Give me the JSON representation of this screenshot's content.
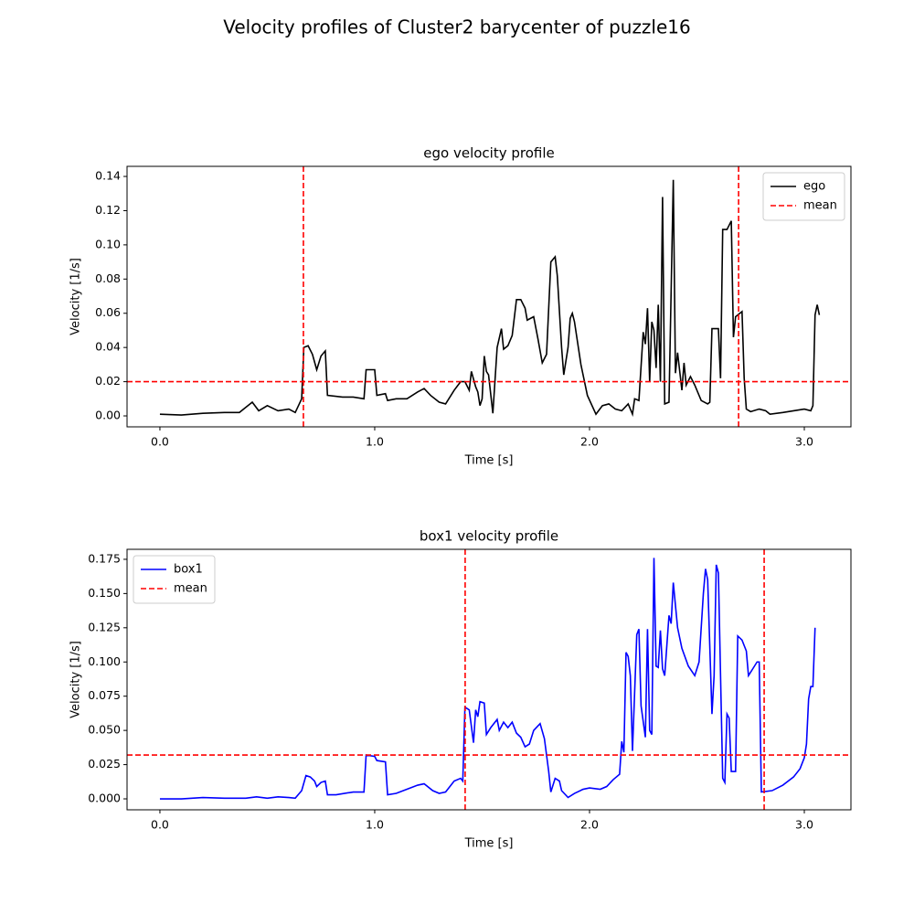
{
  "title": "Velocity profiles of  Cluster2 barycenter of puzzle16",
  "chart_data": [
    {
      "type": "line",
      "title": "ego velocity profile",
      "x_label": "Time [s]",
      "y_label": "Velocity [1/s]",
      "xlim": [
        -0.153,
        3.217
      ],
      "ylim": [
        -0.0064,
        0.1459
      ],
      "xticks": [
        {
          "value": 0,
          "label": "0.0"
        },
        {
          "value": 1,
          "label": "1.0"
        },
        {
          "value": 2,
          "label": "2.0"
        },
        {
          "value": 3,
          "label": "3.0"
        }
      ],
      "yticks": [
        {
          "value": 0,
          "label": "0.00"
        },
        {
          "value": 0.02,
          "label": "0.02"
        },
        {
          "value": 0.04,
          "label": "0.04"
        },
        {
          "value": 0.06,
          "label": "0.06"
        },
        {
          "value": 0.08,
          "label": "0.08"
        },
        {
          "value": 0.1,
          "label": "0.10"
        },
        {
          "value": 0.12,
          "label": "0.12"
        },
        {
          "value": 0.14,
          "label": "0.14"
        }
      ],
      "legend": "upper right",
      "series": [
        {
          "name": "ego",
          "color": "#000000",
          "x": [
            0.0,
            0.1,
            0.2,
            0.3,
            0.37,
            0.4,
            0.43,
            0.46,
            0.5,
            0.55,
            0.6,
            0.63,
            0.66,
            0.67,
            0.69,
            0.71,
            0.73,
            0.75,
            0.77,
            0.78,
            0.85,
            0.9,
            0.95,
            0.96,
            1.0,
            1.01,
            1.05,
            1.06,
            1.1,
            1.15,
            1.2,
            1.23,
            1.26,
            1.3,
            1.33,
            1.37,
            1.4,
            1.42,
            1.44,
            1.45,
            1.47,
            1.48,
            1.49,
            1.5,
            1.51,
            1.52,
            1.53,
            1.55,
            1.57,
            1.59,
            1.6,
            1.62,
            1.64,
            1.66,
            1.68,
            1.7,
            1.71,
            1.74,
            1.76,
            1.78,
            1.8,
            1.82,
            1.84,
            1.85,
            1.87,
            1.88,
            1.9,
            1.91,
            1.92,
            1.93,
            1.96,
            1.99,
            2.03,
            2.06,
            2.09,
            2.12,
            2.15,
            2.18,
            2.2,
            2.21,
            2.23,
            2.25,
            2.26,
            2.27,
            2.28,
            2.29,
            2.3,
            2.31,
            2.32,
            2.33,
            2.34,
            2.35,
            2.37,
            2.39,
            2.4,
            2.41,
            2.43,
            2.44,
            2.45,
            2.47,
            2.49,
            2.52,
            2.55,
            2.56,
            2.57,
            2.6,
            2.61,
            2.62,
            2.64,
            2.66,
            2.67,
            2.68,
            2.7,
            2.71,
            2.72,
            2.73,
            2.75,
            2.79,
            2.82,
            2.84,
            2.9,
            2.95,
            3.0,
            3.03,
            3.04,
            3.05,
            3.06,
            3.07
          ],
          "values": [
            0.001,
            0.0005,
            0.0015,
            0.002,
            0.002,
            0.005,
            0.008,
            0.003,
            0.006,
            0.003,
            0.004,
            0.002,
            0.01,
            0.04,
            0.041,
            0.036,
            0.027,
            0.035,
            0.038,
            0.012,
            0.011,
            0.011,
            0.01,
            0.027,
            0.027,
            0.012,
            0.013,
            0.009,
            0.01,
            0.01,
            0.014,
            0.016,
            0.012,
            0.008,
            0.007,
            0.015,
            0.02,
            0.02,
            0.015,
            0.026,
            0.017,
            0.014,
            0.006,
            0.01,
            0.035,
            0.026,
            0.024,
            0.0015,
            0.04,
            0.051,
            0.039,
            0.041,
            0.047,
            0.068,
            0.068,
            0.063,
            0.056,
            0.058,
            0.045,
            0.031,
            0.036,
            0.09,
            0.093,
            0.082,
            0.04,
            0.024,
            0.04,
            0.057,
            0.06,
            0.055,
            0.03,
            0.012,
            0.001,
            0.006,
            0.007,
            0.004,
            0.003,
            0.007,
            0.001,
            0.01,
            0.009,
            0.049,
            0.042,
            0.063,
            0.02,
            0.055,
            0.05,
            0.028,
            0.065,
            0.02,
            0.128,
            0.007,
            0.008,
            0.138,
            0.025,
            0.037,
            0.015,
            0.031,
            0.018,
            0.023,
            0.018,
            0.009,
            0.007,
            0.008,
            0.051,
            0.051,
            0.022,
            0.109,
            0.109,
            0.114,
            0.046,
            0.058,
            0.06,
            0.061,
            0.022,
            0.004,
            0.0025,
            0.004,
            0.003,
            0.001,
            0.002,
            0.003,
            0.004,
            0.003,
            0.006,
            0.059,
            0.065,
            0.059
          ]
        }
      ],
      "mean_lines": {
        "name": "mean",
        "color": "#ff0000",
        "y": 0.02,
        "x": [
          0.668,
          2.694
        ]
      }
    },
    {
      "type": "line",
      "title": "box1 velocity profile",
      "x_label": "Time [s]",
      "y_label": "Velocity [1/s]",
      "xlim": [
        -0.153,
        3.217
      ],
      "ylim": [
        -0.008,
        0.1823
      ],
      "xticks": [
        {
          "value": 0,
          "label": "0.0"
        },
        {
          "value": 1,
          "label": "1.0"
        },
        {
          "value": 2,
          "label": "2.0"
        },
        {
          "value": 3,
          "label": "3.0"
        }
      ],
      "yticks": [
        {
          "value": 0,
          "label": "0.000"
        },
        {
          "value": 0.025,
          "label": "0.025"
        },
        {
          "value": 0.05,
          "label": "0.050"
        },
        {
          "value": 0.075,
          "label": "0.075"
        },
        {
          "value": 0.1,
          "label": "0.100"
        },
        {
          "value": 0.125,
          "label": "0.125"
        },
        {
          "value": 0.15,
          "label": "0.150"
        },
        {
          "value": 0.175,
          "label": "0.175"
        }
      ],
      "legend": "upper left",
      "series": [
        {
          "name": "box1",
          "color": "#0000ff",
          "x": [
            0,
            0.1,
            0.2,
            0.3,
            0.4,
            0.45,
            0.5,
            0.55,
            0.6,
            0.63,
            0.66,
            0.68,
            0.7,
            0.72,
            0.73,
            0.75,
            0.77,
            0.78,
            0.82,
            0.9,
            0.95,
            0.96,
            1.0,
            1.01,
            1.05,
            1.06,
            1.1,
            1.15,
            1.2,
            1.23,
            1.27,
            1.3,
            1.33,
            1.37,
            1.4,
            1.41,
            1.42,
            1.44,
            1.46,
            1.47,
            1.48,
            1.49,
            1.51,
            1.52,
            1.54,
            1.57,
            1.58,
            1.6,
            1.62,
            1.64,
            1.66,
            1.68,
            1.7,
            1.72,
            1.74,
            1.77,
            1.79,
            1.81,
            1.82,
            1.84,
            1.86,
            1.87,
            1.9,
            1.93,
            1.97,
            2.0,
            2.05,
            2.08,
            2.11,
            2.14,
            2.15,
            2.16,
            2.17,
            2.18,
            2.19,
            2.2,
            2.22,
            2.23,
            2.24,
            2.26,
            2.27,
            2.28,
            2.29,
            2.3,
            2.31,
            2.32,
            2.33,
            2.34,
            2.35,
            2.37,
            2.38,
            2.39,
            2.41,
            2.43,
            2.46,
            2.49,
            2.51,
            2.53,
            2.54,
            2.55,
            2.57,
            2.58,
            2.59,
            2.6,
            2.62,
            2.63,
            2.64,
            2.65,
            2.66,
            2.68,
            2.69,
            2.71,
            2.73,
            2.74,
            2.76,
            2.78,
            2.79,
            2.8,
            2.85,
            2.9,
            2.95,
            2.98,
            3.0,
            3.01,
            3.02,
            3.03,
            3.04,
            3.05
          ],
          "values": [
            0,
            0,
            0.001,
            0.0005,
            0.0005,
            0.0015,
            0.0005,
            0.0015,
            0.001,
            0.0005,
            0.006,
            0.017,
            0.016,
            0.013,
            0.009,
            0.012,
            0.013,
            0.003,
            0.003,
            0.005,
            0.005,
            0.032,
            0.031,
            0.028,
            0.027,
            0.003,
            0.004,
            0.007,
            0.01,
            0.011,
            0.006,
            0.004,
            0.005,
            0.013,
            0.015,
            0.013,
            0.067,
            0.065,
            0.041,
            0.065,
            0.06,
            0.071,
            0.07,
            0.047,
            0.052,
            0.058,
            0.05,
            0.056,
            0.052,
            0.056,
            0.048,
            0.045,
            0.038,
            0.04,
            0.05,
            0.055,
            0.044,
            0.02,
            0.005,
            0.015,
            0.013,
            0.006,
            0.001,
            0.004,
            0.007,
            0.008,
            0.007,
            0.009,
            0.014,
            0.018,
            0.042,
            0.034,
            0.107,
            0.104,
            0.09,
            0.035,
            0.12,
            0.124,
            0.068,
            0.045,
            0.124,
            0.05,
            0.047,
            0.176,
            0.097,
            0.096,
            0.123,
            0.095,
            0.09,
            0.134,
            0.128,
            0.158,
            0.125,
            0.11,
            0.097,
            0.09,
            0.1,
            0.15,
            0.168,
            0.16,
            0.062,
            0.09,
            0.171,
            0.165,
            0.015,
            0.012,
            0.062,
            0.059,
            0.02,
            0.02,
            0.119,
            0.116,
            0.108,
            0.09,
            0.095,
            0.1,
            0.1,
            0.005,
            0.006,
            0.01,
            0.016,
            0.022,
            0.03,
            0.04,
            0.073,
            0.082,
            0.082,
            0.125
          ]
        }
      ],
      "mean_lines": {
        "name": "mean",
        "color": "#ff0000",
        "y": 0.032,
        "x": [
          1.421,
          2.813
        ]
      }
    }
  ]
}
